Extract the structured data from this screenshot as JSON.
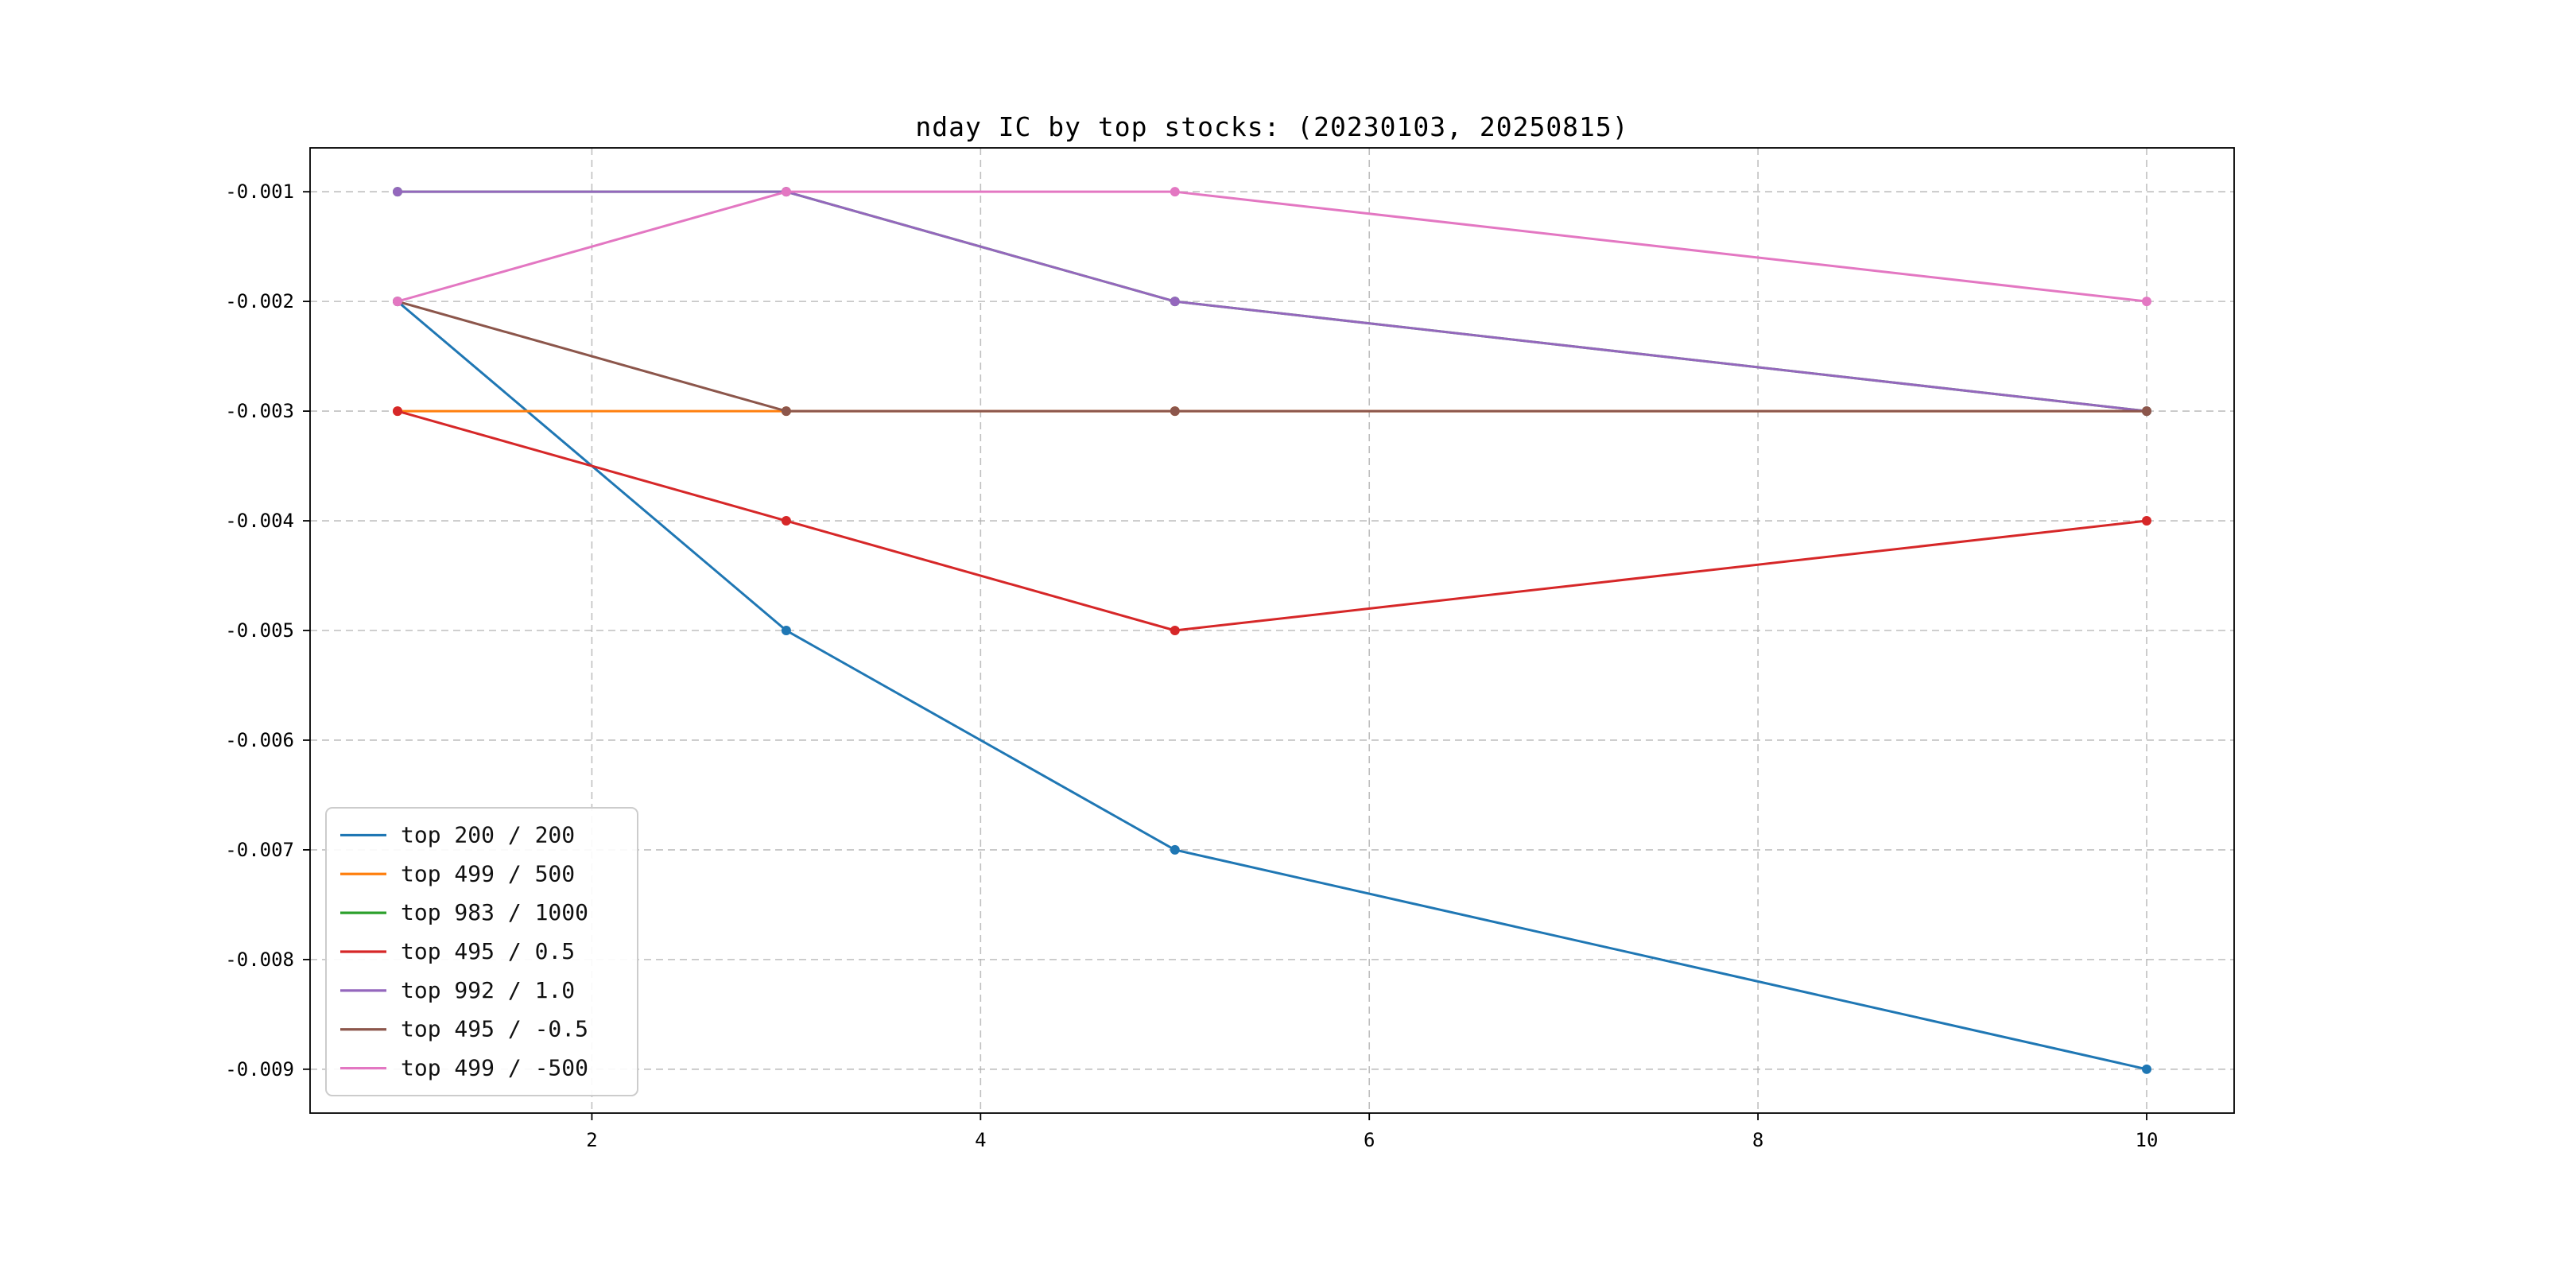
{
  "title": "nday IC by top stocks: (20230103, 20250815)",
  "chart_data": {
    "type": "line",
    "title": "nday IC by top stocks: (20230103, 20250815)",
    "x": [
      1,
      3,
      5,
      10
    ],
    "series": [
      {
        "name": "top 200 / 200",
        "color": "#1f77b4",
        "values": [
          -0.002,
          -0.005,
          -0.007,
          -0.009
        ]
      },
      {
        "name": "top 499 / 500",
        "color": "#ff7f0e",
        "values": [
          -0.003,
          -0.003,
          -0.003,
          -0.003
        ]
      },
      {
        "name": "top 983 / 1000",
        "color": "#2ca02c",
        "values": [
          -0.001,
          -0.001,
          -0.002,
          -0.003
        ]
      },
      {
        "name": "top 495 / 0.5",
        "color": "#d62728",
        "values": [
          -0.003,
          -0.004,
          -0.005,
          -0.004
        ]
      },
      {
        "name": "top 992 / 1.0",
        "color": "#9467bd",
        "values": [
          -0.001,
          -0.001,
          -0.002,
          -0.003
        ]
      },
      {
        "name": "top 495 / -0.5",
        "color": "#8c564b",
        "values": [
          -0.002,
          -0.003,
          -0.003,
          -0.003
        ]
      },
      {
        "name": "top 499 / -500",
        "color": "#e377c2",
        "values": [
          -0.002,
          -0.001,
          -0.001,
          -0.002
        ]
      }
    ],
    "xlim": [
      0.55,
      10.45
    ],
    "ylim": [
      -0.0094,
      -0.0006
    ],
    "xticks": [
      2,
      4,
      6,
      8,
      10
    ],
    "xtick_labels": [
      "2",
      "4",
      "6",
      "8",
      "10"
    ],
    "yticks": [
      -0.001,
      -0.002,
      -0.003,
      -0.004,
      -0.005,
      -0.006,
      -0.007,
      -0.008,
      -0.009
    ],
    "ytick_labels": [
      "-0.001",
      "-0.002",
      "-0.003",
      "-0.004",
      "-0.005",
      "-0.006",
      "-0.007",
      "-0.008",
      "-0.009"
    ],
    "grid": true,
    "grid_style": "dashed",
    "grid_color": "#b0b0b0",
    "legend_position": "lower left"
  },
  "colors": {
    "background": "#ffffff",
    "spine": "#000000",
    "tick_label": "#000000",
    "legend_border": "#cccccc"
  }
}
